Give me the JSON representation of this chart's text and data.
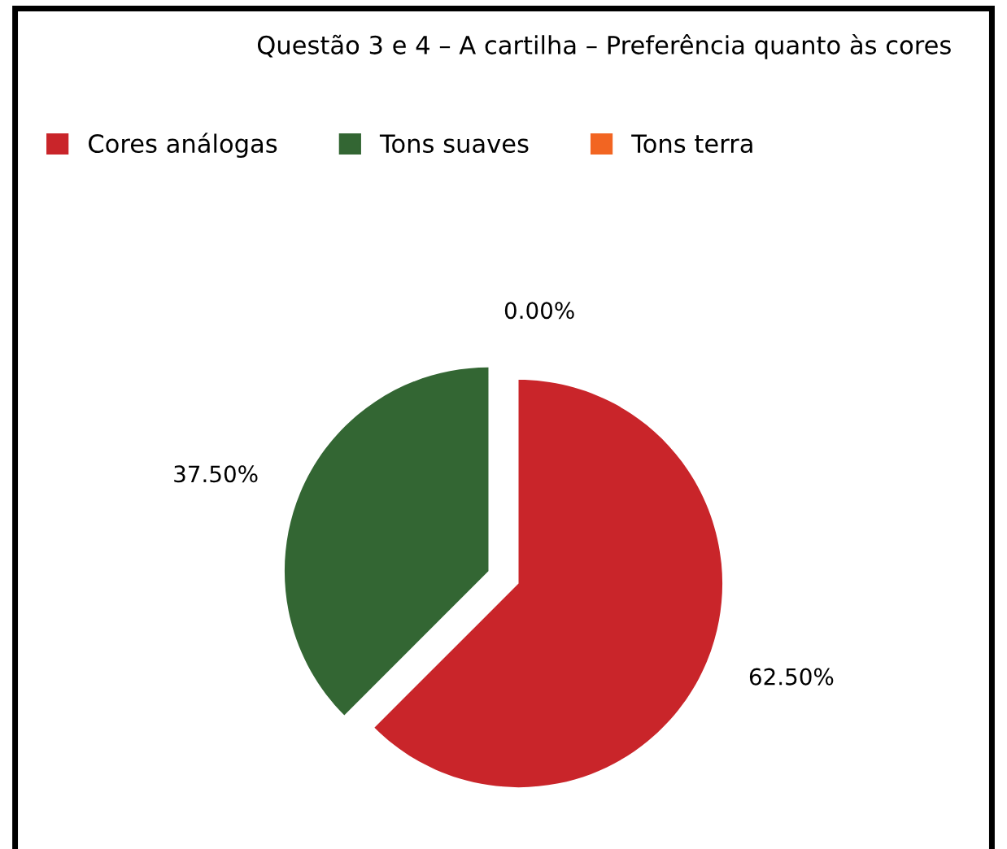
{
  "chart_data": {
    "type": "pie",
    "title": "Questão 3 e 4 – A cartilha – Preferência quanto às cores",
    "categories": [
      "Cores análogas",
      "Tons suaves",
      "Tons terra"
    ],
    "values": [
      62.5,
      37.5,
      0
    ],
    "colors": [
      "#c9252a",
      "#336633",
      "#f26522"
    ],
    "value_labels": [
      "62.50%",
      "37.50%",
      "0.00%"
    ],
    "legend": "top left"
  }
}
